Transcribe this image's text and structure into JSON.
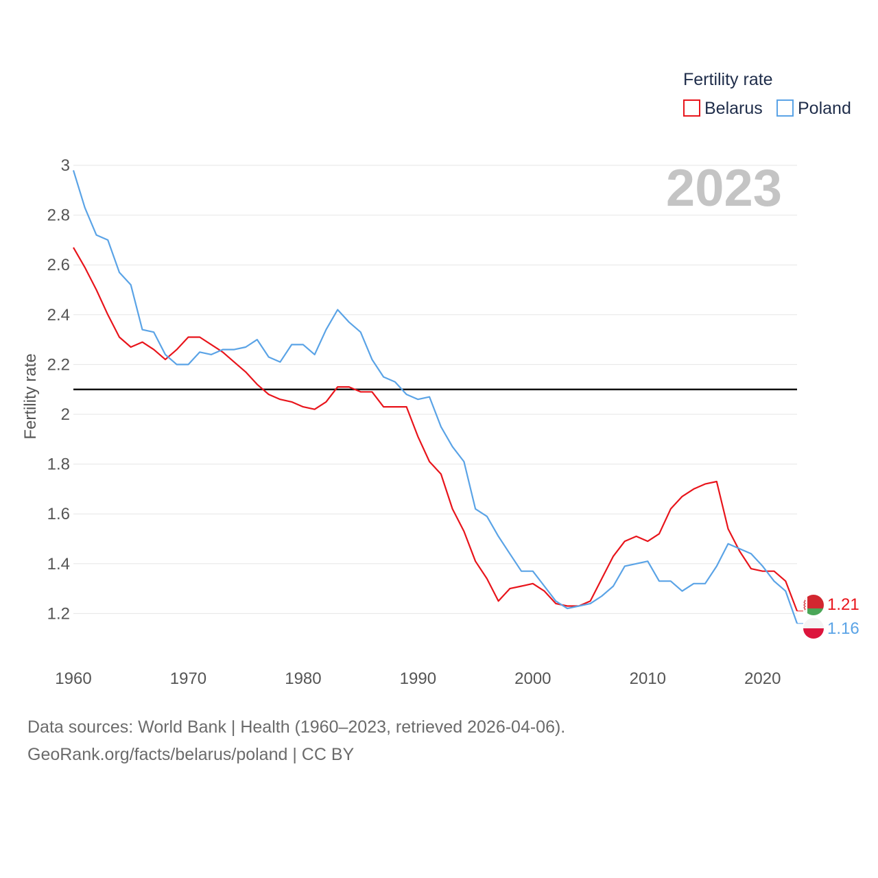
{
  "chart_data": {
    "type": "line",
    "legend_title": "Fertility rate",
    "ylabel": "Fertility rate",
    "year_label": "2023",
    "reference_line": 2.1,
    "ylim": [
      1.0,
      3.0
    ],
    "xlim": [
      1960,
      2023
    ],
    "y_ticks": [
      1.2,
      1.4,
      1.6,
      1.8,
      2,
      2.2,
      2.4,
      2.6,
      2.8,
      3
    ],
    "y_tick_labels": [
      "1.2",
      "1.4",
      "1.6",
      "1.8",
      "2",
      "2.2",
      "2.4",
      "2.6",
      "2.8",
      "3"
    ],
    "x_ticks": [
      1960,
      1970,
      1980,
      1990,
      2000,
      2010,
      2020
    ],
    "x_tick_labels": [
      "1960",
      "1970",
      "1980",
      "1990",
      "2000",
      "2010",
      "2020"
    ],
    "x": [
      1960,
      1961,
      1962,
      1963,
      1964,
      1965,
      1966,
      1967,
      1968,
      1969,
      1970,
      1971,
      1972,
      1973,
      1974,
      1975,
      1976,
      1977,
      1978,
      1979,
      1980,
      1981,
      1982,
      1983,
      1984,
      1985,
      1986,
      1987,
      1988,
      1989,
      1990,
      1991,
      1992,
      1993,
      1994,
      1995,
      1996,
      1997,
      1998,
      1999,
      2000,
      2001,
      2002,
      2003,
      2004,
      2005,
      2006,
      2007,
      2008,
      2009,
      2010,
      2011,
      2012,
      2013,
      2014,
      2015,
      2016,
      2017,
      2018,
      2019,
      2020,
      2021,
      2022,
      2023
    ],
    "series": [
      {
        "name": "Belarus",
        "color": "#e8141b",
        "end_label": "1.21",
        "values": [
          2.67,
          2.59,
          2.5,
          2.4,
          2.31,
          2.27,
          2.29,
          2.26,
          2.22,
          2.26,
          2.31,
          2.31,
          2.28,
          2.25,
          2.21,
          2.17,
          2.12,
          2.08,
          2.06,
          2.05,
          2.03,
          2.02,
          2.05,
          2.11,
          2.11,
          2.09,
          2.09,
          2.03,
          2.03,
          2.03,
          1.91,
          1.81,
          1.76,
          1.62,
          1.53,
          1.41,
          1.34,
          1.25,
          1.3,
          1.31,
          1.32,
          1.29,
          1.24,
          1.23,
          1.23,
          1.25,
          1.34,
          1.43,
          1.49,
          1.51,
          1.49,
          1.52,
          1.62,
          1.67,
          1.7,
          1.72,
          1.73,
          1.54,
          1.45,
          1.38,
          1.37,
          1.37,
          1.33,
          1.21
        ]
      },
      {
        "name": "Poland",
        "color": "#5aa3e6",
        "end_label": "1.16",
        "values": [
          2.98,
          2.83,
          2.72,
          2.7,
          2.57,
          2.52,
          2.34,
          2.33,
          2.24,
          2.2,
          2.2,
          2.25,
          2.24,
          2.26,
          2.26,
          2.27,
          2.3,
          2.23,
          2.21,
          2.28,
          2.28,
          2.24,
          2.34,
          2.42,
          2.37,
          2.33,
          2.22,
          2.15,
          2.13,
          2.08,
          2.06,
          2.07,
          1.95,
          1.87,
          1.81,
          1.62,
          1.59,
          1.51,
          1.44,
          1.37,
          1.37,
          1.31,
          1.25,
          1.22,
          1.23,
          1.24,
          1.27,
          1.31,
          1.39,
          1.4,
          1.41,
          1.33,
          1.33,
          1.29,
          1.32,
          1.32,
          1.39,
          1.48,
          1.46,
          1.44,
          1.39,
          1.33,
          1.29,
          1.16
        ]
      }
    ]
  },
  "footer": {
    "sources": "Data sources: World Bank | Health (1960–2023, retrieved 2026-04-06).",
    "credit": "GeoRank.org/facts/belarus/poland | CC BY"
  }
}
